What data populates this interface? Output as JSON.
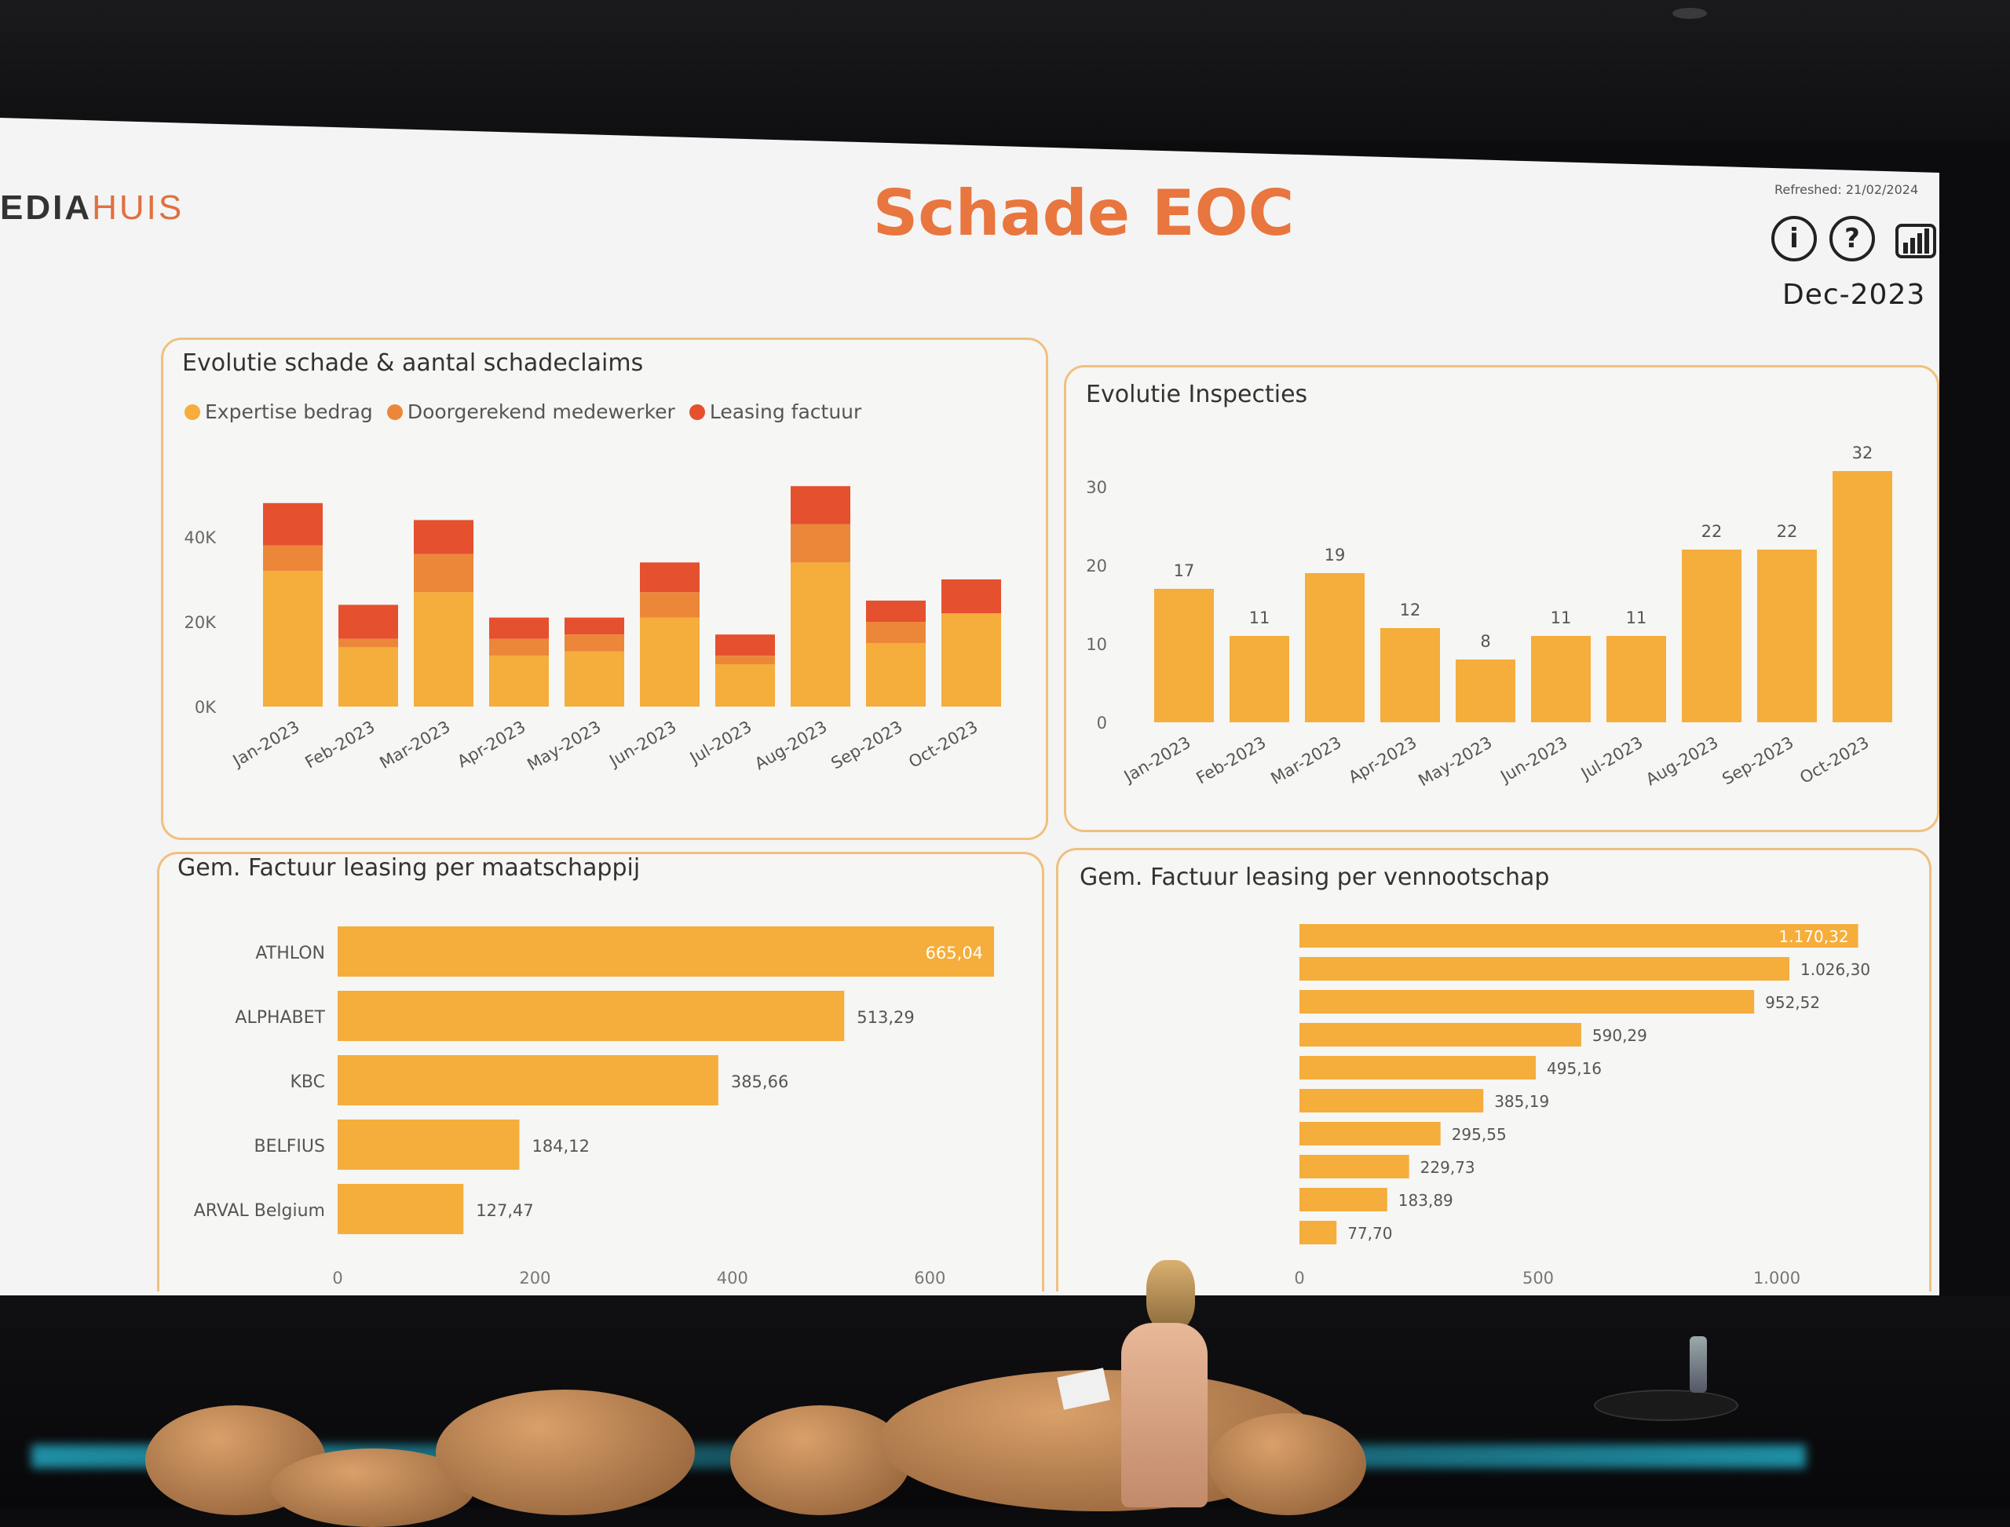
{
  "header": {
    "logo_fragment": "EDIA",
    "logo_suffix": "HUIS",
    "title": "Schade EOC",
    "refreshed": "Refreshed: 21/02/2024",
    "period": "Dec-2023",
    "icons": [
      "info-icon",
      "help-icon",
      "powerbi-icon"
    ]
  },
  "panels": {
    "damage": {
      "title": "Evolutie schade & aantal schadeclaims",
      "legend": [
        {
          "label": "Expertise bedrag",
          "color": "#f5ad3c"
        },
        {
          "label": "Doorgerekend medewerker",
          "color": "#ec873a"
        },
        {
          "label": "Leasing factuur",
          "color": "#e5502f"
        }
      ]
    },
    "inspections": {
      "title": "Evolutie Inspecties"
    },
    "company": {
      "title": "Gem. Factuur leasing per maatschappij"
    },
    "entity": {
      "title": "Gem. Factuur leasing per vennootschap"
    }
  },
  "chart_data": [
    {
      "type": "bar",
      "stacked": true,
      "title": "Evolutie schade & aantal schadeclaims",
      "categories": [
        "Jan-2023",
        "Feb-2023",
        "Mar-2023",
        "Apr-2023",
        "May-2023",
        "Jun-2023",
        "Jul-2023",
        "Aug-2023",
        "Sep-2023",
        "Oct-2023"
      ],
      "series": [
        {
          "name": "Expertise bedrag",
          "color": "#f5ad3c",
          "values": [
            32000,
            14000,
            27000,
            12000,
            13000,
            21000,
            10000,
            34000,
            15000,
            22000
          ]
        },
        {
          "name": "Doorgerekend medewerker",
          "color": "#ec873a",
          "values": [
            6000,
            2000,
            9000,
            4000,
            4000,
            6000,
            2000,
            9000,
            5000,
            0
          ]
        },
        {
          "name": "Leasing factuur",
          "color": "#e5502f",
          "values": [
            10000,
            8000,
            8000,
            5000,
            4000,
            7000,
            5000,
            9000,
            5000,
            8000
          ]
        }
      ],
      "yticks": [
        "0K",
        "20K",
        "40K"
      ],
      "ylim": [
        0,
        50000
      ],
      "legend_position": "top-left",
      "grid": false
    },
    {
      "type": "bar",
      "title": "Evolutie Inspecties",
      "categories": [
        "Jan-2023",
        "Feb-2023",
        "Mar-2023",
        "Apr-2023",
        "May-2023",
        "Jun-2023",
        "Jul-2023",
        "Aug-2023",
        "Sep-2023",
        "Oct-2023"
      ],
      "values": [
        17,
        11,
        19,
        12,
        8,
        11,
        11,
        22,
        22,
        32
      ],
      "yticks": [
        "0",
        "10",
        "20",
        "30"
      ],
      "ylim": [
        0,
        33
      ],
      "color": "#f5ad3c",
      "grid": false
    },
    {
      "type": "bar",
      "orientation": "horizontal",
      "title": "Gem. Factuur leasing per maatschappij",
      "categories": [
        "ATHLON",
        "ALPHABET",
        "KBC",
        "BELFIUS",
        "ARVAL Belgium"
      ],
      "values": [
        665.04,
        513.29,
        385.66,
        184.12,
        127.47
      ],
      "labels": [
        "665,04",
        "513,29",
        "385,66",
        "184,12",
        "127,47"
      ],
      "xticks": [
        "0",
        "200",
        "400",
        "600"
      ],
      "xlim": [
        0,
        700
      ],
      "color": "#f5ad3c"
    },
    {
      "type": "bar",
      "orientation": "horizontal",
      "title": "Gem. Factuur leasing per vennootschap",
      "categories": [],
      "values": [
        1170.32,
        1026.3,
        952.52,
        590.29,
        495.16,
        385.19,
        295.55,
        229.73,
        183.89,
        77.7
      ],
      "labels": [
        "1.170,32",
        "1.026,30",
        "952,52",
        "590,29",
        "495,16",
        "385,19",
        "295,55",
        "229,73",
        "183,89",
        "77,70"
      ],
      "xticks": [
        "0",
        "500",
        "1.000"
      ],
      "xlim": [
        0,
        1250
      ],
      "color": "#f5ad3c"
    }
  ]
}
